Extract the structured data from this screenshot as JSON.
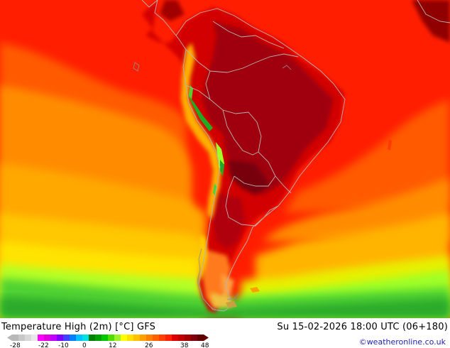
{
  "map": {
    "title": "Temperature High (2m) [°C] GFS",
    "datetime": "Su 15-02-2026 18:00 UTC (06+180)",
    "credit": "©weatheronline.co.uk",
    "region": "South America",
    "colors": {
      "ocean_tropical": "#ff1a00",
      "ocean_warm": "#ff5a00",
      "ocean_mild": "#ff8c00",
      "ocean_cool": "#ffb400",
      "ocean_cooler": "#ffe000",
      "ocean_cold": "#a8ff28",
      "ocean_colder": "#3ccd3c",
      "land_hot": "#c80000",
      "land_very_hot": "#900010",
      "andes_cool": "#ffaa00",
      "andes_cold": "#1ea01e",
      "border": "#b0b0b0"
    }
  },
  "legend": {
    "ticks": [
      "-28",
      "-22",
      "-10",
      "0",
      "12",
      "26",
      "38",
      "48"
    ],
    "swatches": [
      "#b8b8b8",
      "#c8c8c8",
      "#d8d8d8",
      "#e8e8e8",
      "#ff00ff",
      "#e000e0",
      "#c000ff",
      "#8000ff",
      "#4040ff",
      "#0080ff",
      "#00c0ff",
      "#00e0e0",
      "#008000",
      "#00a000",
      "#00c800",
      "#50dc00",
      "#a0f028",
      "#ffff00",
      "#ffe000",
      "#ffc000",
      "#ffa000",
      "#ff8000",
      "#ff6000",
      "#ff4000",
      "#ff2000",
      "#e00000",
      "#c00000",
      "#a00000",
      "#800010",
      "#600000"
    ]
  }
}
